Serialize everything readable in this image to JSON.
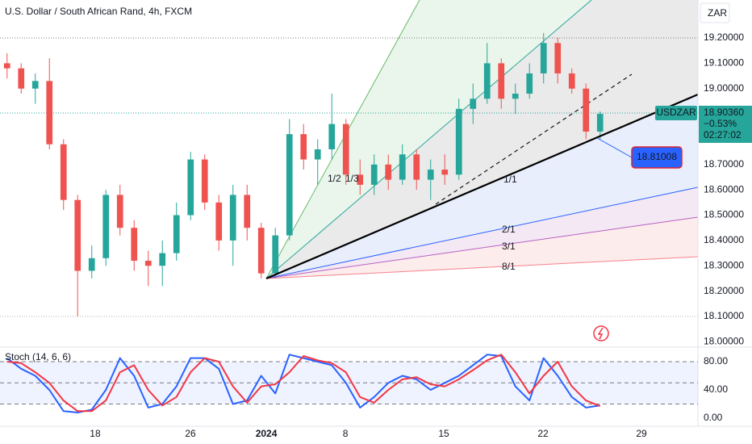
{
  "chart_data": [
    {
      "type": "candlestick",
      "title": "U.S. Dollar / South African Rand, 4h, FXCM",
      "currency": "ZAR",
      "symbol": "USDZAR",
      "last_price": {
        "value": 18.9036,
        "label": "18.90360"
      },
      "change": {
        "value": -0.53,
        "label": "−0.53%"
      },
      "countdown": "02:27:02",
      "callout": {
        "value": 18.81008,
        "label": "18.81008"
      },
      "fan_labels": [
        "1/1",
        "2/1",
        "3/1",
        "8/1",
        "1/2",
        "1/3"
      ],
      "up_color": "#26a69a",
      "down_color": "#ef5350",
      "xlim": [
        0,
        49.43
      ],
      "xticks": [
        {
          "value": 6.74,
          "label": "18"
        },
        {
          "value": 13.49,
          "label": "26"
        },
        {
          "value": 18.86,
          "label": "2024"
        },
        {
          "value": 24.46,
          "label": "8"
        },
        {
          "value": 31.43,
          "label": "15"
        },
        {
          "value": 38.46,
          "label": "22"
        },
        {
          "value": 45.43,
          "label": "29"
        }
      ],
      "ylim": [
        17.985,
        19.35
      ],
      "yticks": [
        {
          "value": 19.2,
          "label": "19.20000"
        },
        {
          "value": 19.1,
          "label": "19.10000"
        },
        {
          "value": 19.0,
          "label": "19.00000"
        },
        {
          "value": 18.7,
          "label": "18.70000"
        },
        {
          "value": 18.6,
          "label": "18.60000"
        },
        {
          "value": 18.5,
          "label": "18.50000"
        },
        {
          "value": 18.4,
          "label": "18.40000"
        },
        {
          "value": 18.3,
          "label": "18.30000"
        },
        {
          "value": 18.2,
          "label": "18.20000"
        },
        {
          "value": 18.1,
          "label": "18.10000"
        },
        {
          "value": 18.0,
          "label": "18.00000"
        }
      ],
      "candles": [
        [
          19.1,
          19.14,
          19.04,
          19.08
        ],
        [
          19.08,
          19.1,
          18.98,
          19.0
        ],
        [
          19.0,
          19.06,
          18.94,
          19.03
        ],
        [
          19.03,
          19.12,
          18.76,
          18.78
        ],
        [
          18.78,
          18.8,
          18.52,
          18.56
        ],
        [
          18.56,
          18.58,
          18.1,
          18.28
        ],
        [
          18.28,
          18.38,
          18.25,
          18.33
        ],
        [
          18.33,
          18.6,
          18.3,
          18.58
        ],
        [
          18.58,
          18.62,
          18.42,
          18.45
        ],
        [
          18.45,
          18.48,
          18.28,
          18.32
        ],
        [
          18.32,
          18.36,
          18.22,
          18.3
        ],
        [
          18.3,
          18.4,
          18.22,
          18.35
        ],
        [
          18.35,
          18.55,
          18.32,
          18.5
        ],
        [
          18.5,
          18.75,
          18.48,
          18.72
        ],
        [
          18.72,
          18.74,
          18.52,
          18.55
        ],
        [
          18.55,
          18.58,
          18.36,
          18.4
        ],
        [
          18.4,
          18.62,
          18.3,
          18.58
        ],
        [
          18.58,
          18.62,
          18.4,
          18.45
        ],
        [
          18.45,
          18.47,
          18.25,
          18.27
        ],
        [
          18.27,
          18.45,
          18.25,
          18.42
        ],
        [
          18.42,
          18.88,
          18.4,
          18.82
        ],
        [
          18.82,
          18.86,
          18.68,
          18.72
        ],
        [
          18.72,
          18.8,
          18.62,
          18.76
        ],
        [
          18.76,
          18.98,
          18.72,
          18.86
        ],
        [
          18.86,
          18.88,
          18.62,
          18.66
        ],
        [
          18.66,
          18.72,
          18.58,
          18.62
        ],
        [
          18.62,
          18.74,
          18.58,
          18.7
        ],
        [
          18.7,
          18.74,
          18.6,
          18.64
        ],
        [
          18.64,
          18.78,
          18.62,
          18.74
        ],
        [
          18.74,
          18.76,
          18.6,
          18.64
        ],
        [
          18.64,
          18.72,
          18.56,
          18.68
        ],
        [
          18.68,
          18.74,
          18.62,
          18.66
        ],
        [
          18.66,
          18.96,
          18.64,
          18.92
        ],
        [
          18.92,
          19.02,
          18.86,
          18.96
        ],
        [
          18.96,
          19.18,
          18.94,
          19.1
        ],
        [
          19.1,
          19.12,
          18.92,
          18.96
        ],
        [
          18.96,
          19.02,
          18.9,
          18.98
        ],
        [
          18.98,
          19.1,
          18.96,
          19.06
        ],
        [
          19.06,
          19.22,
          19.02,
          19.18
        ],
        [
          19.18,
          19.2,
          19.02,
          19.06
        ],
        [
          19.06,
          19.08,
          18.98,
          19.0
        ],
        [
          19.0,
          19.02,
          18.8,
          18.83
        ],
        [
          18.83,
          18.91,
          18.8,
          18.9
        ]
      ]
    },
    {
      "type": "line",
      "title": "Stoch (14, 6, 6)",
      "xlim": [
        0,
        49.43
      ],
      "ylim": [
        -11.4,
        98.3
      ],
      "yticks": [
        {
          "value": 80,
          "label": "80.00"
        },
        {
          "value": 40,
          "label": "40.00"
        },
        {
          "value": 0,
          "label": "0.00"
        }
      ],
      "levels": [
        80,
        50,
        20
      ],
      "series": [
        {
          "color": "#2962ff",
          "values": [
            85,
            70,
            60,
            40,
            10,
            8,
            12,
            40,
            85,
            60,
            15,
            20,
            45,
            85,
            85,
            70,
            20,
            25,
            60,
            35,
            90,
            85,
            80,
            75,
            50,
            15,
            30,
            50,
            60,
            55,
            40,
            50,
            60,
            75,
            90,
            88,
            45,
            25,
            85,
            60,
            30,
            15,
            18
          ]
        },
        {
          "color": "#f23645",
          "values": [
            80,
            78,
            65,
            50,
            25,
            10,
            10,
            25,
            65,
            75,
            40,
            18,
            30,
            65,
            85,
            80,
            45,
            22,
            45,
            48,
            65,
            88,
            82,
            78,
            65,
            30,
            22,
            40,
            55,
            58,
            48,
            45,
            55,
            68,
            82,
            90,
            65,
            35,
            60,
            80,
            45,
            25,
            17
          ]
        }
      ]
    }
  ]
}
